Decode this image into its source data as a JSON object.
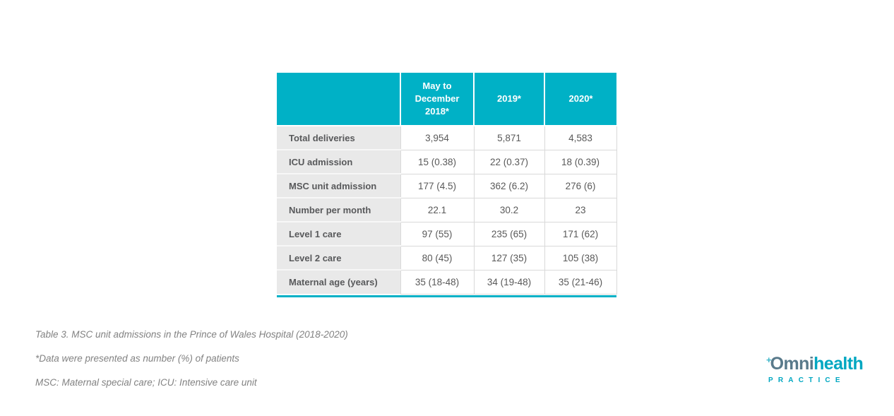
{
  "table": {
    "columns": [
      "",
      "May to December 2018*",
      "2019*",
      "2020*"
    ],
    "rows": [
      {
        "label": "Total deliveries",
        "values": [
          "3,954",
          "5,871",
          "4,583"
        ]
      },
      {
        "label": "ICU admission",
        "values": [
          "15 (0.38)",
          "22 (0.37)",
          "18 (0.39)"
        ]
      },
      {
        "label": "MSC unit admission",
        "values": [
          "177 (4.5)",
          "362 (6.2)",
          "276 (6)"
        ]
      },
      {
        "label": "Number per month",
        "values": [
          "22.1",
          "30.2",
          "23"
        ]
      },
      {
        "label": "Level 1 care",
        "values": [
          "97 (55)",
          "235 (65)",
          "171 (62)"
        ]
      },
      {
        "label": "Level 2 care",
        "values": [
          "80 (45)",
          "127 (35)",
          "105 (38)"
        ]
      },
      {
        "label": "Maternal age (years)",
        "values": [
          "35 (18-48)",
          "34 (19-48)",
          "35 (21-46)"
        ]
      }
    ]
  },
  "chart_data": {
    "type": "table",
    "title": "Table 3. MSC unit admissions in the Prince of Wales Hospital (2018-2020)",
    "columns": [
      "",
      "May to December 2018*",
      "2019*",
      "2020*"
    ],
    "rows": [
      [
        "Total deliveries",
        "3,954",
        "5,871",
        "4,583"
      ],
      [
        "ICU admission",
        "15 (0.38)",
        "22 (0.37)",
        "18 (0.39)"
      ],
      [
        "MSC unit admission",
        "177 (4.5)",
        "362 (6.2)",
        "276 (6)"
      ],
      [
        "Number per month",
        "22.1",
        "30.2",
        "23"
      ],
      [
        "Level 1 care",
        "97 (55)",
        "235 (65)",
        "171 (62)"
      ],
      [
        "Level 2 care",
        "80 (45)",
        "127 (35)",
        "105 (38)"
      ],
      [
        "Maternal age (years)",
        "35 (18-48)",
        "34 (19-48)",
        "35 (21-46)"
      ]
    ]
  },
  "captions": {
    "title": "Table 3. MSC unit admissions in the Prince of Wales Hospital (2018-2020)",
    "footnote1": "*Data were presented as number (%) of patients",
    "footnote2": "MSC: Maternal special care; ICU: Intensive care unit"
  },
  "logo": {
    "plus": "+",
    "name_part1": "Omni",
    "name_part2": "health",
    "subtitle": "PRACTICE"
  },
  "colors": {
    "accent_teal": "#00b1c6",
    "logo_teal": "#00a7c1",
    "logo_slate": "#597a8b",
    "label_cell_bg": "#e9e9e9",
    "body_text": "#595959",
    "caption_text": "#828282",
    "cell_border": "#d9d9d9"
  }
}
